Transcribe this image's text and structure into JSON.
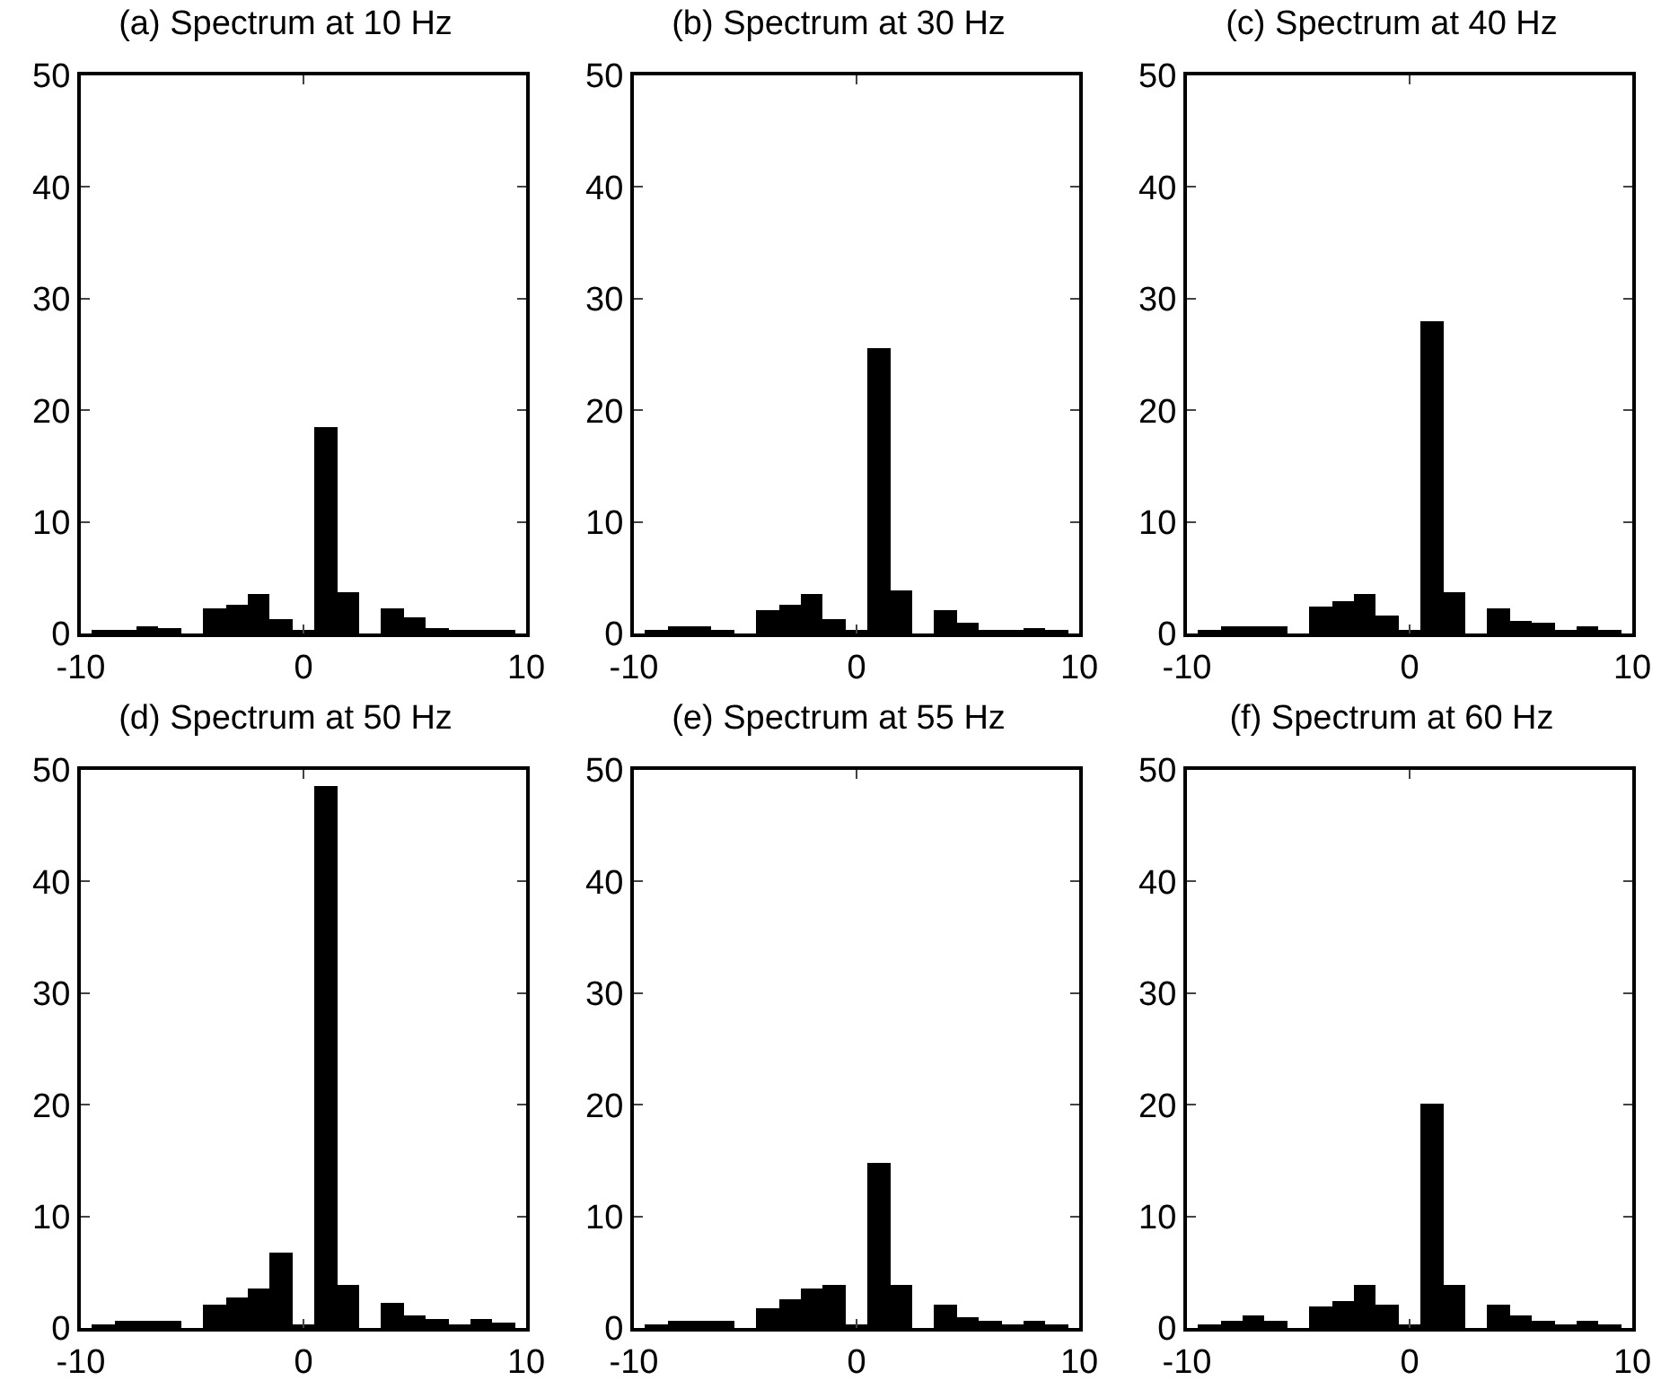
{
  "chart_data": [
    {
      "type": "bar",
      "title": "(a) Spectrum at 10 Hz",
      "x": [
        -9,
        -8,
        -7,
        -6,
        -5,
        -4,
        -3,
        -2,
        -1,
        0,
        1,
        2,
        3,
        4,
        5,
        6,
        7,
        8,
        9
      ],
      "series": [
        {
          "color": "#000000",
          "values": [
            0.2,
            0.4,
            0.6,
            0.5,
            0,
            2.3,
            2.6,
            3.6,
            1.3,
            0.3,
            18.5,
            3.7,
            0,
            2.3,
            1.5,
            0.5,
            0.3,
            0.4,
            0.4
          ]
        }
      ],
      "xlim": [
        -10,
        10
      ],
      "xticks": [
        -10,
        0,
        10
      ],
      "ylim": [
        0,
        50
      ],
      "yticks": [
        0,
        10,
        20,
        30,
        40,
        50
      ],
      "grid": false
    },
    {
      "type": "bar",
      "title": "(b) Spectrum at 30 Hz",
      "x": [
        -9,
        -8,
        -7,
        -6,
        -5,
        -4,
        -3,
        -2,
        -1,
        0,
        1,
        2,
        3,
        4,
        5,
        6,
        7,
        8,
        9
      ],
      "series": [
        {
          "color": "#000000",
          "values": [
            0.2,
            0.6,
            0.6,
            0.3,
            0,
            2.1,
            2.5,
            3.5,
            1.3,
            0.2,
            25.5,
            3.9,
            0,
            2.1,
            1.0,
            0.4,
            0.2,
            0.5,
            0.3
          ]
        }
      ],
      "xlim": [
        -10,
        10
      ],
      "xticks": [
        -10,
        0,
        10
      ],
      "ylim": [
        0,
        50
      ],
      "yticks": [
        0,
        10,
        20,
        30,
        40,
        50
      ],
      "grid": false
    },
    {
      "type": "bar",
      "title": "(c) Spectrum at 40 Hz",
      "x": [
        -9,
        -8,
        -7,
        -6,
        -5,
        -4,
        -3,
        -2,
        -1,
        0,
        1,
        2,
        3,
        4,
        5,
        6,
        7,
        8,
        9
      ],
      "series": [
        {
          "color": "#000000",
          "values": [
            0.3,
            0.6,
            0.7,
            0.7,
            0,
            2.4,
            2.9,
            3.6,
            1.6,
            0.2,
            27.9,
            3.7,
            0,
            2.3,
            1.2,
            0.9,
            0.3,
            0.7,
            0.4
          ]
        }
      ],
      "xlim": [
        -10,
        10
      ],
      "xticks": [
        -10,
        0,
        10
      ],
      "ylim": [
        0,
        50
      ],
      "yticks": [
        0,
        10,
        20,
        30,
        40,
        50
      ],
      "grid": false
    },
    {
      "type": "bar",
      "title": "(d) Spectrum at 50 Hz",
      "x": [
        -9,
        -8,
        -7,
        -6,
        -5,
        -4,
        -3,
        -2,
        -1,
        0,
        1,
        2,
        3,
        4,
        5,
        6,
        7,
        8,
        9
      ],
      "series": [
        {
          "color": "#000000",
          "values": [
            0.3,
            0.7,
            0.7,
            0.7,
            0,
            2.1,
            2.8,
            3.6,
            6.8,
            0.3,
            48.5,
            3.8,
            0,
            2.2,
            1.1,
            0.8,
            0.2,
            0.8,
            0.5
          ]
        }
      ],
      "xlim": [
        -10,
        10
      ],
      "xticks": [
        -10,
        0,
        10
      ],
      "ylim": [
        0,
        50
      ],
      "yticks": [
        0,
        10,
        20,
        30,
        40,
        50
      ],
      "grid": false
    },
    {
      "type": "bar",
      "title": "(e) Spectrum at 55 Hz",
      "x": [
        -9,
        -8,
        -7,
        -6,
        -5,
        -4,
        -3,
        -2,
        -1,
        0,
        1,
        2,
        3,
        4,
        5,
        6,
        7,
        8,
        9
      ],
      "series": [
        {
          "color": "#000000",
          "values": [
            0.2,
            0.7,
            0.7,
            0.6,
            0,
            1.8,
            2.5,
            3.5,
            3.9,
            0.2,
            14.8,
            3.9,
            0,
            2.1,
            1.0,
            0.6,
            0.2,
            0.6,
            0.4
          ]
        }
      ],
      "xlim": [
        -10,
        10
      ],
      "xticks": [
        -10,
        0,
        10
      ],
      "ylim": [
        0,
        50
      ],
      "yticks": [
        0,
        10,
        20,
        30,
        40,
        50
      ],
      "grid": false
    },
    {
      "type": "bar",
      "title": "(f) Spectrum at 60 Hz",
      "x": [
        -9,
        -8,
        -7,
        -6,
        -5,
        -4,
        -3,
        -2,
        -1,
        0,
        1,
        2,
        3,
        4,
        5,
        6,
        7,
        8,
        9
      ],
      "series": [
        {
          "color": "#000000",
          "values": [
            0.2,
            0.7,
            1.1,
            0.7,
            0,
            1.9,
            2.4,
            3.8,
            2.1,
            0.2,
            20.1,
            3.9,
            0,
            2.1,
            1.1,
            0.7,
            0.2,
            0.6,
            0.3
          ]
        }
      ],
      "xlim": [
        -10,
        10
      ],
      "xticks": [
        -10,
        0,
        10
      ],
      "ylim": [
        0,
        50
      ],
      "yticks": [
        0,
        10,
        20,
        30,
        40,
        50
      ],
      "grid": false
    }
  ]
}
